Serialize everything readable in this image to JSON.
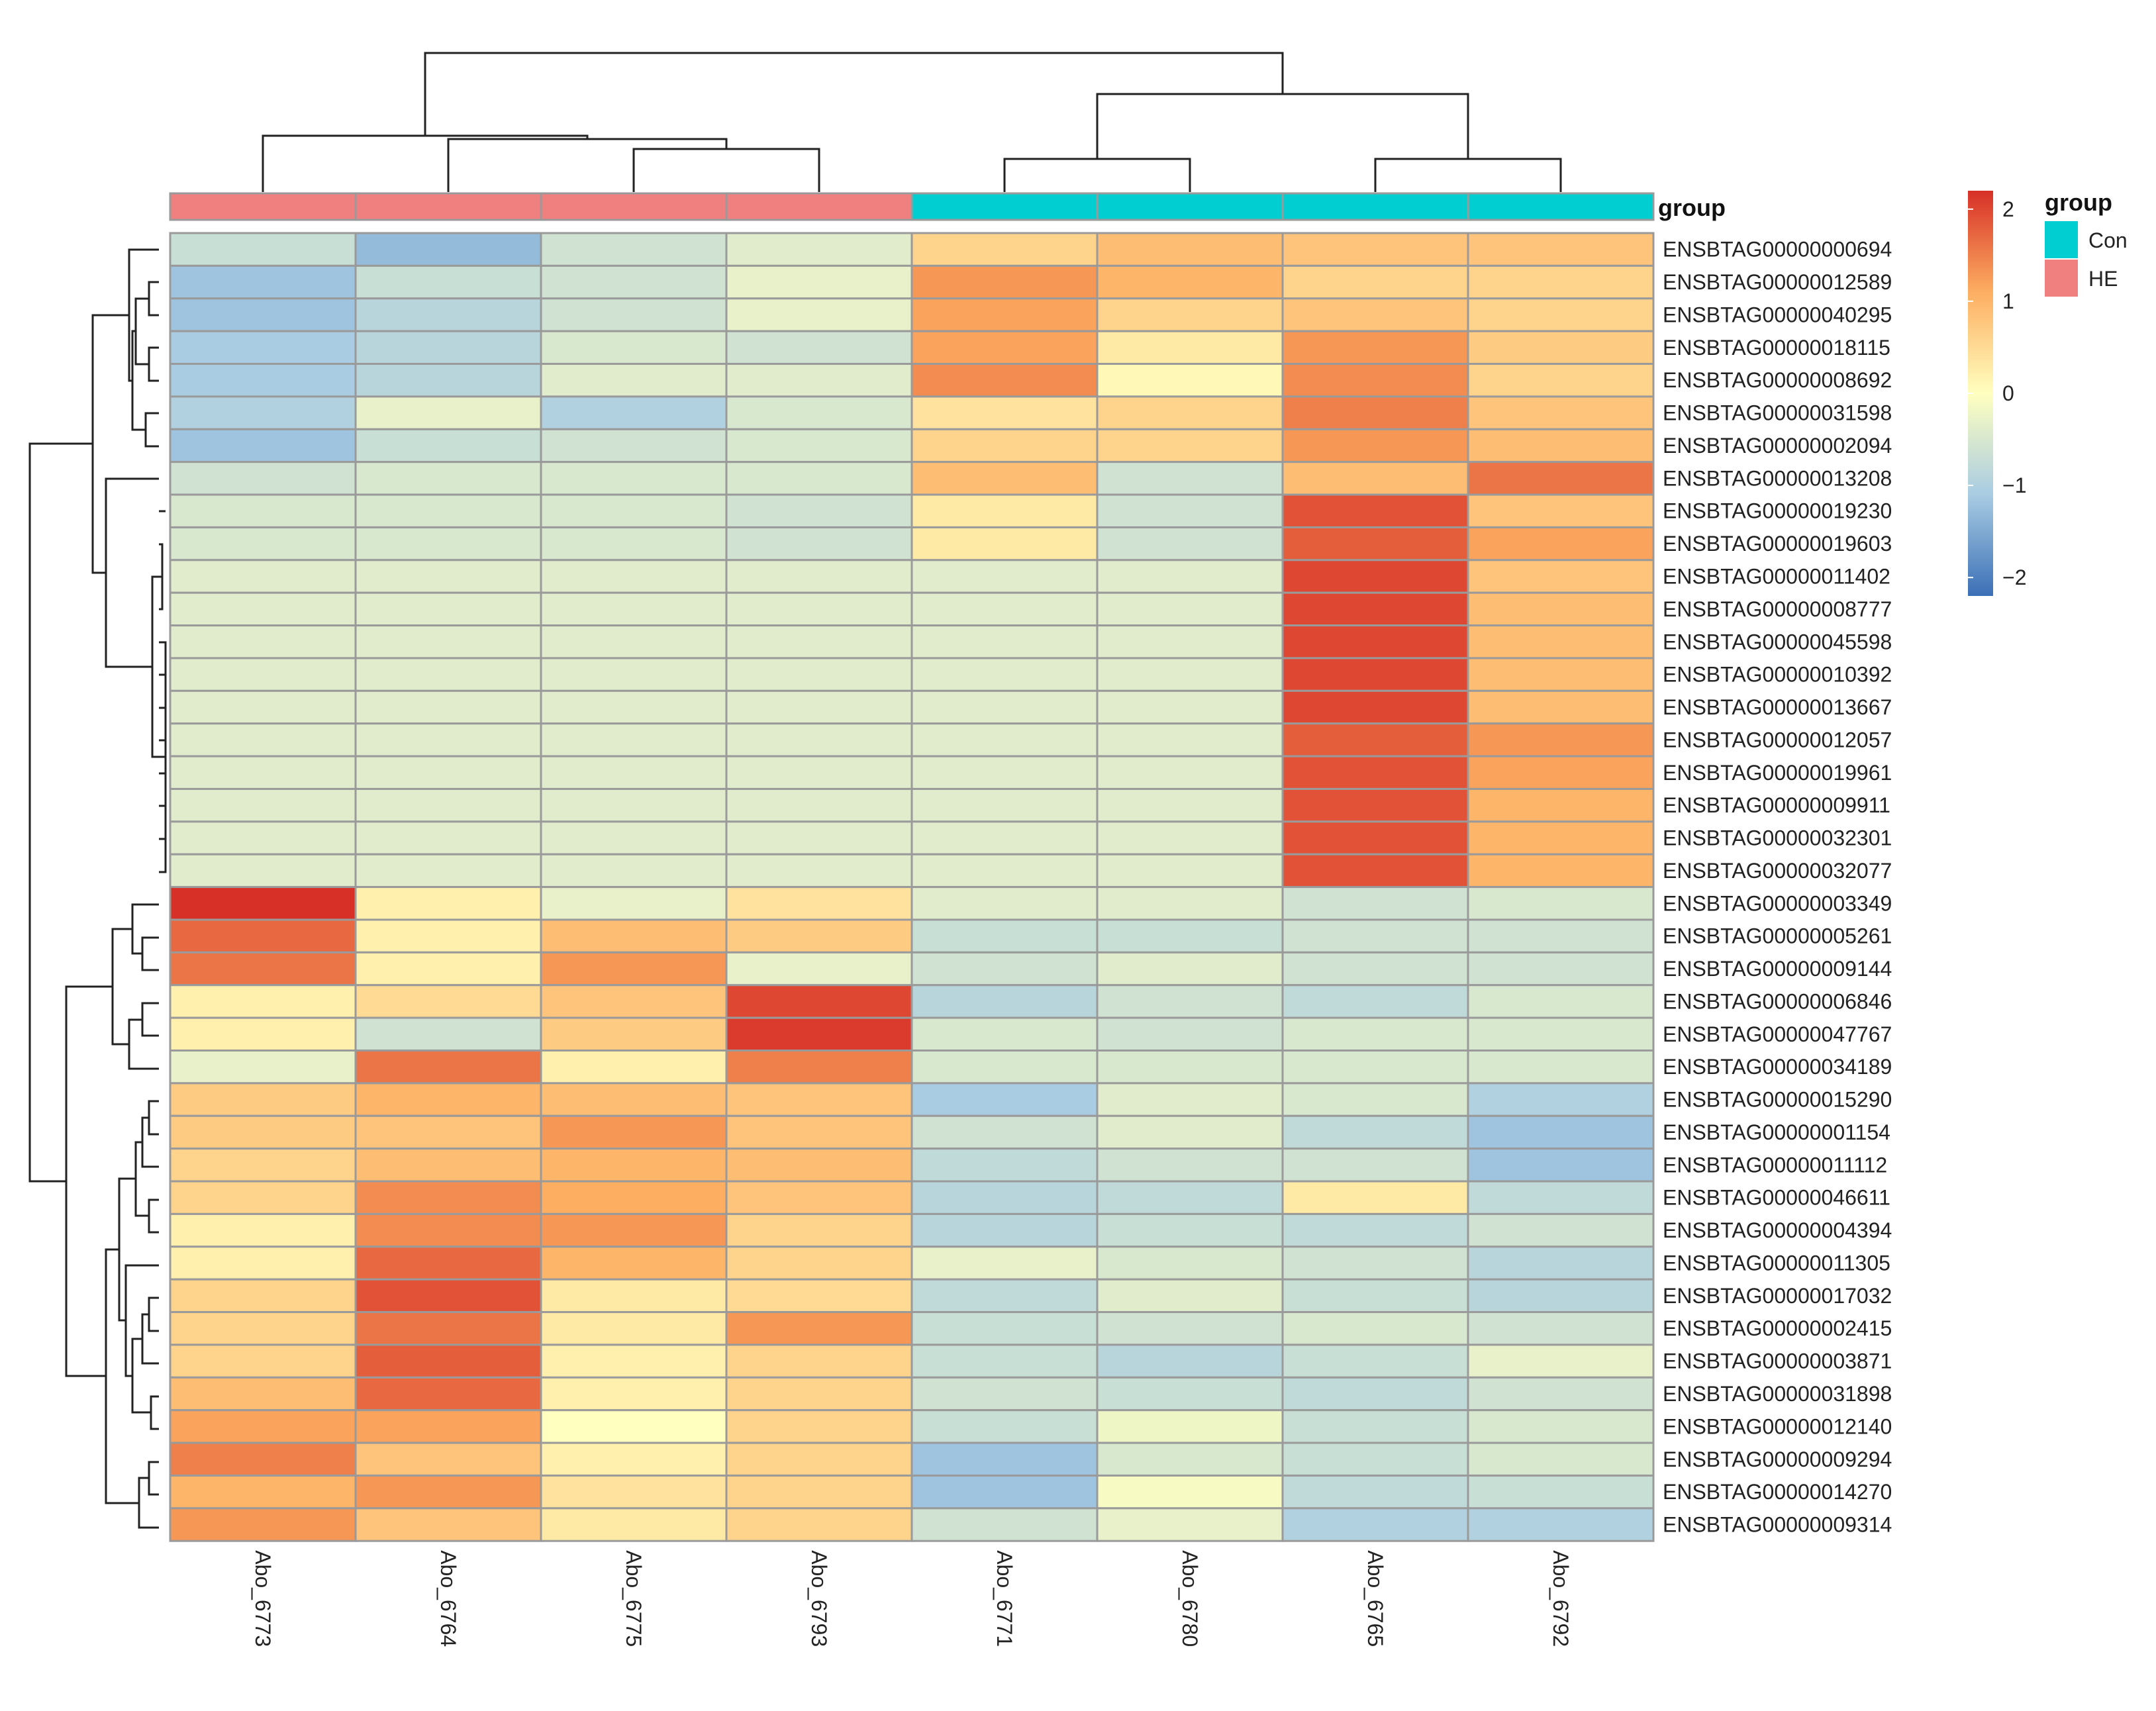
{
  "chart_data": {
    "type": "heatmap",
    "title": "",
    "columns": [
      "Abo_6773",
      "Abo_6764",
      "Abo_6775",
      "Abo_6793",
      "Abo_6771",
      "Abo_6780",
      "Abo_6765",
      "Abo_6792"
    ],
    "column_groups": [
      "HE",
      "HE",
      "HE",
      "HE",
      "Con",
      "Con",
      "Con",
      "Con"
    ],
    "rows": [
      "ENSBTAG00000000694",
      "ENSBTAG00000012589",
      "ENSBTAG00000040295",
      "ENSBTAG00000018115",
      "ENSBTAG00000008692",
      "ENSBTAG00000031598",
      "ENSBTAG00000002094",
      "ENSBTAG00000013208",
      "ENSBTAG00000019230",
      "ENSBTAG00000019603",
      "ENSBTAG00000011402",
      "ENSBTAG00000008777",
      "ENSBTAG00000045598",
      "ENSBTAG00000010392",
      "ENSBTAG00000013667",
      "ENSBTAG00000012057",
      "ENSBTAG00000019961",
      "ENSBTAG00000009911",
      "ENSBTAG00000032301",
      "ENSBTAG00000032077",
      "ENSBTAG00000003349",
      "ENSBTAG00000005261",
      "ENSBTAG00000009144",
      "ENSBTAG00000006846",
      "ENSBTAG00000047767",
      "ENSBTAG00000034189",
      "ENSBTAG00000015290",
      "ENSBTAG00000001154",
      "ENSBTAG00000011112",
      "ENSBTAG00000046611",
      "ENSBTAG00000004394",
      "ENSBTAG00000011305",
      "ENSBTAG00000017032",
      "ENSBTAG00000002415",
      "ENSBTAG00000003871",
      "ENSBTAG00000031898",
      "ENSBTAG00000012140",
      "ENSBTAG00000009294",
      "ENSBTAG00000014270",
      "ENSBTAG00000009314"
    ],
    "values": [
      [
        -0.7,
        -1.3,
        -0.6,
        -0.4,
        0.6,
        0.9,
        0.8,
        0.8
      ],
      [
        -1.2,
        -0.7,
        -0.6,
        -0.3,
        1.3,
        1.0,
        0.6,
        0.6
      ],
      [
        -1.2,
        -0.9,
        -0.6,
        -0.3,
        1.2,
        0.6,
        0.8,
        0.6
      ],
      [
        -1.1,
        -0.9,
        -0.5,
        -0.6,
        1.2,
        0.3,
        1.3,
        0.7
      ],
      [
        -1.1,
        -0.9,
        -0.4,
        -0.4,
        1.4,
        0.1,
        1.4,
        0.6
      ],
      [
        -1.0,
        -0.3,
        -1.0,
        -0.5,
        0.4,
        0.6,
        1.5,
        0.8
      ],
      [
        -1.2,
        -0.7,
        -0.6,
        -0.5,
        0.6,
        0.6,
        1.3,
        0.9
      ],
      [
        -0.6,
        -0.5,
        -0.5,
        -0.5,
        0.9,
        -0.6,
        0.9,
        1.6
      ],
      [
        -0.5,
        -0.5,
        -0.5,
        -0.6,
        0.3,
        -0.6,
        1.9,
        0.8
      ],
      [
        -0.5,
        -0.5,
        -0.5,
        -0.6,
        0.3,
        -0.6,
        1.8,
        1.2
      ],
      [
        -0.4,
        -0.4,
        -0.4,
        -0.4,
        -0.4,
        -0.4,
        2.0,
        0.8
      ],
      [
        -0.4,
        -0.4,
        -0.4,
        -0.4,
        -0.4,
        -0.4,
        2.0,
        0.9
      ],
      [
        -0.4,
        -0.4,
        -0.4,
        -0.4,
        -0.4,
        -0.4,
        2.0,
        0.9
      ],
      [
        -0.4,
        -0.4,
        -0.4,
        -0.4,
        -0.4,
        -0.4,
        2.0,
        0.9
      ],
      [
        -0.4,
        -0.4,
        -0.4,
        -0.4,
        -0.4,
        -0.4,
        2.0,
        0.9
      ],
      [
        -0.4,
        -0.4,
        -0.4,
        -0.4,
        -0.4,
        -0.4,
        1.8,
        1.3
      ],
      [
        -0.4,
        -0.4,
        -0.4,
        -0.4,
        -0.4,
        -0.4,
        1.9,
        1.2
      ],
      [
        -0.4,
        -0.4,
        -0.4,
        -0.4,
        -0.4,
        -0.4,
        1.9,
        1.0
      ],
      [
        -0.4,
        -0.4,
        -0.4,
        -0.4,
        -0.4,
        -0.4,
        1.9,
        1.0
      ],
      [
        -0.4,
        -0.4,
        -0.4,
        -0.4,
        -0.4,
        -0.4,
        1.9,
        1.0
      ],
      [
        2.2,
        0.2,
        -0.3,
        0.4,
        -0.4,
        -0.4,
        -0.6,
        -0.5
      ],
      [
        1.7,
        0.2,
        0.9,
        0.7,
        -0.7,
        -0.7,
        -0.6,
        -0.6
      ],
      [
        1.6,
        0.2,
        1.3,
        -0.3,
        -0.6,
        -0.4,
        -0.6,
        -0.6
      ],
      [
        0.2,
        0.5,
        0.8,
        2.0,
        -0.9,
        -0.6,
        -0.8,
        -0.5
      ],
      [
        0.2,
        -0.6,
        0.7,
        2.1,
        -0.5,
        -0.6,
        -0.5,
        -0.5
      ],
      [
        -0.3,
        1.6,
        0.2,
        1.5,
        -0.5,
        -0.5,
        -0.5,
        -0.5
      ],
      [
        0.7,
        1.0,
        0.9,
        0.8,
        -1.1,
        -0.4,
        -0.5,
        -1.0
      ],
      [
        0.7,
        0.8,
        1.3,
        0.8,
        -0.6,
        -0.4,
        -0.8,
        -1.2
      ],
      [
        0.6,
        0.9,
        1.0,
        0.9,
        -0.8,
        -0.6,
        -0.6,
        -1.2
      ],
      [
        0.6,
        1.4,
        1.1,
        0.8,
        -0.9,
        -0.8,
        0.3,
        -0.8
      ],
      [
        0.2,
        1.4,
        1.3,
        0.6,
        -0.9,
        -0.7,
        -0.8,
        -0.6
      ],
      [
        0.2,
        1.7,
        1.0,
        0.6,
        -0.3,
        -0.5,
        -0.6,
        -0.9
      ],
      [
        0.6,
        1.9,
        0.3,
        0.5,
        -0.8,
        -0.4,
        -0.7,
        -0.9
      ],
      [
        0.6,
        1.6,
        0.3,
        1.3,
        -0.7,
        -0.6,
        -0.5,
        -0.6
      ],
      [
        0.6,
        1.8,
        0.2,
        0.6,
        -0.7,
        -0.9,
        -0.7,
        -0.3
      ],
      [
        0.9,
        1.7,
        0.2,
        0.6,
        -0.6,
        -0.7,
        -0.8,
        -0.6
      ],
      [
        1.2,
        1.2,
        0.0,
        0.6,
        -0.7,
        -0.2,
        -0.7,
        -0.5
      ],
      [
        1.5,
        0.8,
        0.2,
        0.6,
        -1.2,
        -0.5,
        -0.7,
        -0.5
      ],
      [
        1.0,
        1.3,
        0.4,
        0.6,
        -1.2,
        -0.1,
        -0.8,
        -0.7
      ],
      [
        1.3,
        0.8,
        0.3,
        0.6,
        -0.6,
        -0.3,
        -1.0,
        -1.0
      ]
    ],
    "color_scale": {
      "colors": [
        "#3b6fb6",
        "#a9cce3",
        "#ffffbf",
        "#fdae61",
        "#d73027"
      ],
      "stops": [
        -2.2,
        -1.1,
        0,
        1.1,
        2.2
      ],
      "ticks": [
        2,
        1,
        0,
        -1,
        -2
      ],
      "tick_labels": [
        "2",
        "1",
        "0",
        "−1",
        "−2"
      ]
    },
    "annotation_title": "group",
    "group_legend": [
      {
        "label": "Con",
        "color": "#00ced1"
      },
      {
        "label": "HE",
        "color": "#f08080"
      }
    ],
    "legend_position": "top-right"
  }
}
